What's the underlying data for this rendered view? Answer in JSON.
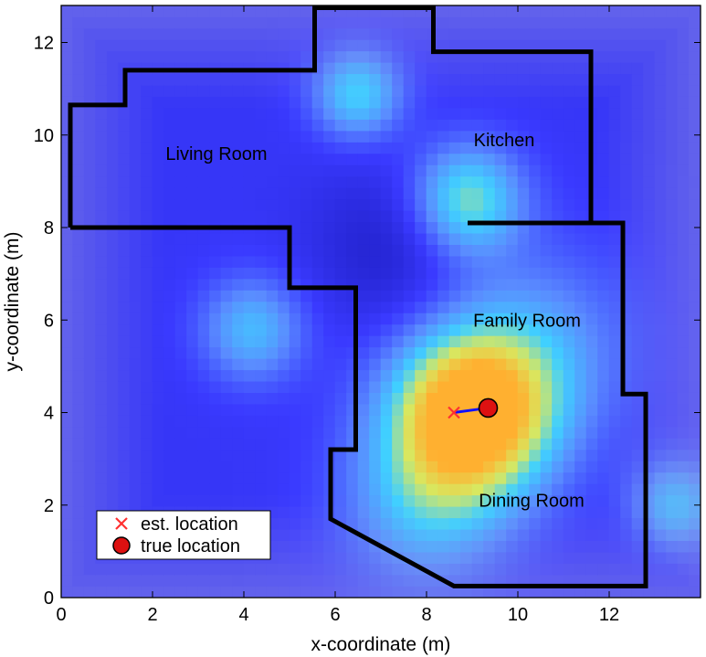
{
  "chart_data": {
    "type": "heatmap",
    "xlabel": "x-coordinate (m)",
    "ylabel": "y-coordinate (m)",
    "xlim": [
      0,
      14
    ],
    "ylim": [
      0,
      12.8
    ],
    "xticks": [
      0,
      2,
      4,
      6,
      8,
      10,
      12
    ],
    "yticks": [
      0,
      2,
      4,
      6,
      8,
      10,
      12
    ],
    "colormap": [
      "#2020c8",
      "#3a3aff",
      "#5a8cff",
      "#40d0ff",
      "#d8e860",
      "#ffb030"
    ],
    "room_labels": [
      {
        "text": "Living Room",
        "x": 3.4,
        "y": 9.6
      },
      {
        "text": "Kitchen",
        "x": 9.7,
        "y": 9.9
      },
      {
        "text": "Family Room",
        "x": 10.2,
        "y": 6.0
      },
      {
        "text": "Dining Room",
        "x": 10.3,
        "y": 2.1
      }
    ],
    "floorplan_outline": [
      [
        0.2,
        8.0
      ],
      [
        0.2,
        10.65
      ],
      [
        1.4,
        10.65
      ],
      [
        1.4,
        11.4
      ],
      [
        5.55,
        11.4
      ],
      [
        5.55,
        12.75
      ],
      [
        8.15,
        12.75
      ],
      [
        8.15,
        11.8
      ],
      [
        11.6,
        11.8
      ],
      [
        11.6,
        8.1
      ],
      [
        12.3,
        8.1
      ],
      [
        12.3,
        4.4
      ],
      [
        12.8,
        4.4
      ],
      [
        12.8,
        0.25
      ],
      [
        8.6,
        0.25
      ],
      [
        5.9,
        1.7
      ],
      [
        5.9,
        3.2
      ],
      [
        6.45,
        3.2
      ],
      [
        6.45,
        6.7
      ],
      [
        5.0,
        6.7
      ],
      [
        5.0,
        8.0
      ],
      [
        0.2,
        8.0
      ]
    ],
    "interior_wall": [
      [
        8.9,
        8.1
      ],
      [
        11.6,
        8.1
      ]
    ],
    "estimated_location": {
      "x": 8.6,
      "y": 4.0
    },
    "true_location": {
      "x": 9.35,
      "y": 4.1
    },
    "intensity_peaks": [
      {
        "x": 9.0,
        "y": 4.0,
        "weight": 1.0,
        "spread": 1.25
      },
      {
        "x": 8.9,
        "y": 8.6,
        "weight": 0.55,
        "spread": 0.85
      },
      {
        "x": 6.5,
        "y": 10.9,
        "weight": 0.45,
        "spread": 0.7
      },
      {
        "x": 4.2,
        "y": 5.8,
        "weight": 0.38,
        "spread": 0.8
      },
      {
        "x": 13.5,
        "y": 2.0,
        "weight": 0.38,
        "spread": 0.7
      },
      {
        "x": 8.0,
        "y": 2.0,
        "weight": 0.35,
        "spread": 1.3
      },
      {
        "x": 10.5,
        "y": 5.5,
        "weight": 0.25,
        "spread": 1.5
      }
    ],
    "legend": {
      "position": "bottom-left",
      "entries": [
        {
          "label": "est. location",
          "marker": "x",
          "color": "#ff3030"
        },
        {
          "label": "true location",
          "marker": "circle",
          "color": "#dd1111"
        }
      ]
    },
    "grid": false
  }
}
